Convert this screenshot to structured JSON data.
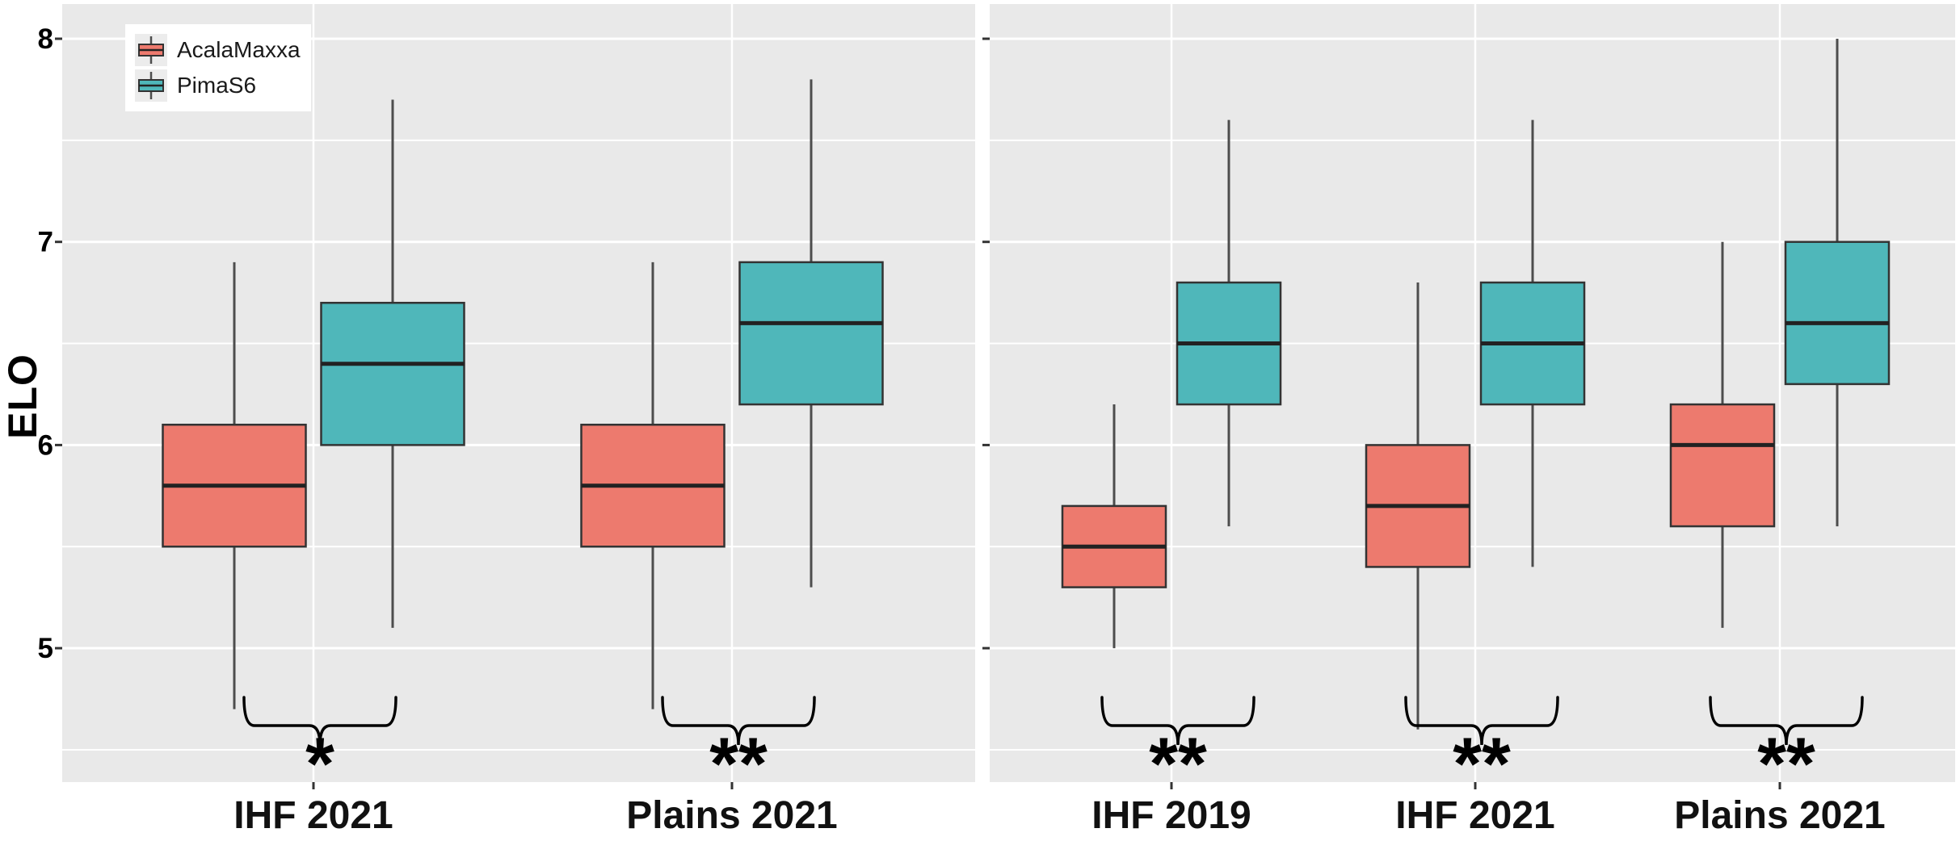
{
  "figure": {
    "y_axis": {
      "title": "ELO",
      "ticks": [
        8,
        7,
        6,
        5
      ]
    },
    "legend": {
      "items": [
        {
          "label": "AcalaMaxxa",
          "color": "#ED7A6E"
        },
        {
          "label": "PimaS6",
          "color": "#4FB7BA"
        }
      ]
    },
    "colors": {
      "panel_bg": "#E9E9E9",
      "grid": "#FFFFFF",
      "box_border": "#333333",
      "median": "#222222",
      "whisker": "#4D4D4D",
      "text": "#111111",
      "annotation": "#000000",
      "salmon": "#ED7A6E",
      "teal": "#4FB7BA"
    }
  },
  "chart_data": [
    {
      "type": "boxplot",
      "panel": "left",
      "ylabel": "ELO",
      "ylim": [
        4.35,
        8.05
      ],
      "y_ticks": [
        5,
        6,
        7,
        8
      ],
      "grid": true,
      "legend_position": "top-left",
      "series_names": [
        "AcalaMaxxa",
        "PimaS6"
      ],
      "categories": [
        {
          "label": "IHF 2021",
          "significance": "*",
          "boxes": [
            {
              "series": "AcalaMaxxa",
              "min": 4.7,
              "q1": 5.5,
              "median": 5.8,
              "q3": 6.1,
              "max": 6.9
            },
            {
              "series": "PimaS6",
              "min": 5.1,
              "q1": 6.0,
              "median": 6.4,
              "q3": 6.7,
              "max": 7.7
            }
          ]
        },
        {
          "label": "Plains 2021",
          "significance": "**",
          "boxes": [
            {
              "series": "AcalaMaxxa",
              "min": 4.7,
              "q1": 5.5,
              "median": 5.8,
              "q3": 6.1,
              "max": 6.9
            },
            {
              "series": "PimaS6",
              "min": 5.3,
              "q1": 6.2,
              "median": 6.6,
              "q3": 6.9,
              "max": 7.8
            }
          ]
        }
      ]
    },
    {
      "type": "boxplot",
      "panel": "right",
      "ylabel": "ELO",
      "ylim": [
        4.35,
        8.05
      ],
      "y_ticks": [
        5,
        6,
        7,
        8
      ],
      "grid": true,
      "series_names": [
        "AcalaMaxxa",
        "PimaS6"
      ],
      "categories": [
        {
          "label": "IHF 2019",
          "significance": "**",
          "boxes": [
            {
              "series": "AcalaMaxxa",
              "min": 5.0,
              "q1": 5.3,
              "median": 5.5,
              "q3": 5.7,
              "max": 6.2
            },
            {
              "series": "PimaS6",
              "min": 5.6,
              "q1": 6.2,
              "median": 6.5,
              "q3": 6.8,
              "max": 7.6
            }
          ]
        },
        {
          "label": "IHF 2021",
          "significance": "**",
          "boxes": [
            {
              "series": "AcalaMaxxa",
              "min": 4.6,
              "q1": 5.4,
              "median": 5.7,
              "q3": 6.0,
              "max": 6.8
            },
            {
              "series": "PimaS6",
              "min": 5.4,
              "q1": 6.2,
              "median": 6.5,
              "q3": 6.8,
              "max": 7.6
            }
          ]
        },
        {
          "label": "Plains 2021",
          "significance": "**",
          "boxes": [
            {
              "series": "AcalaMaxxa",
              "min": 5.1,
              "q1": 5.6,
              "median": 6.0,
              "q3": 6.2,
              "max": 7.0
            },
            {
              "series": "PimaS6",
              "min": 5.6,
              "q1": 6.3,
              "median": 6.6,
              "q3": 7.0,
              "max": 8.0
            }
          ]
        }
      ]
    }
  ]
}
